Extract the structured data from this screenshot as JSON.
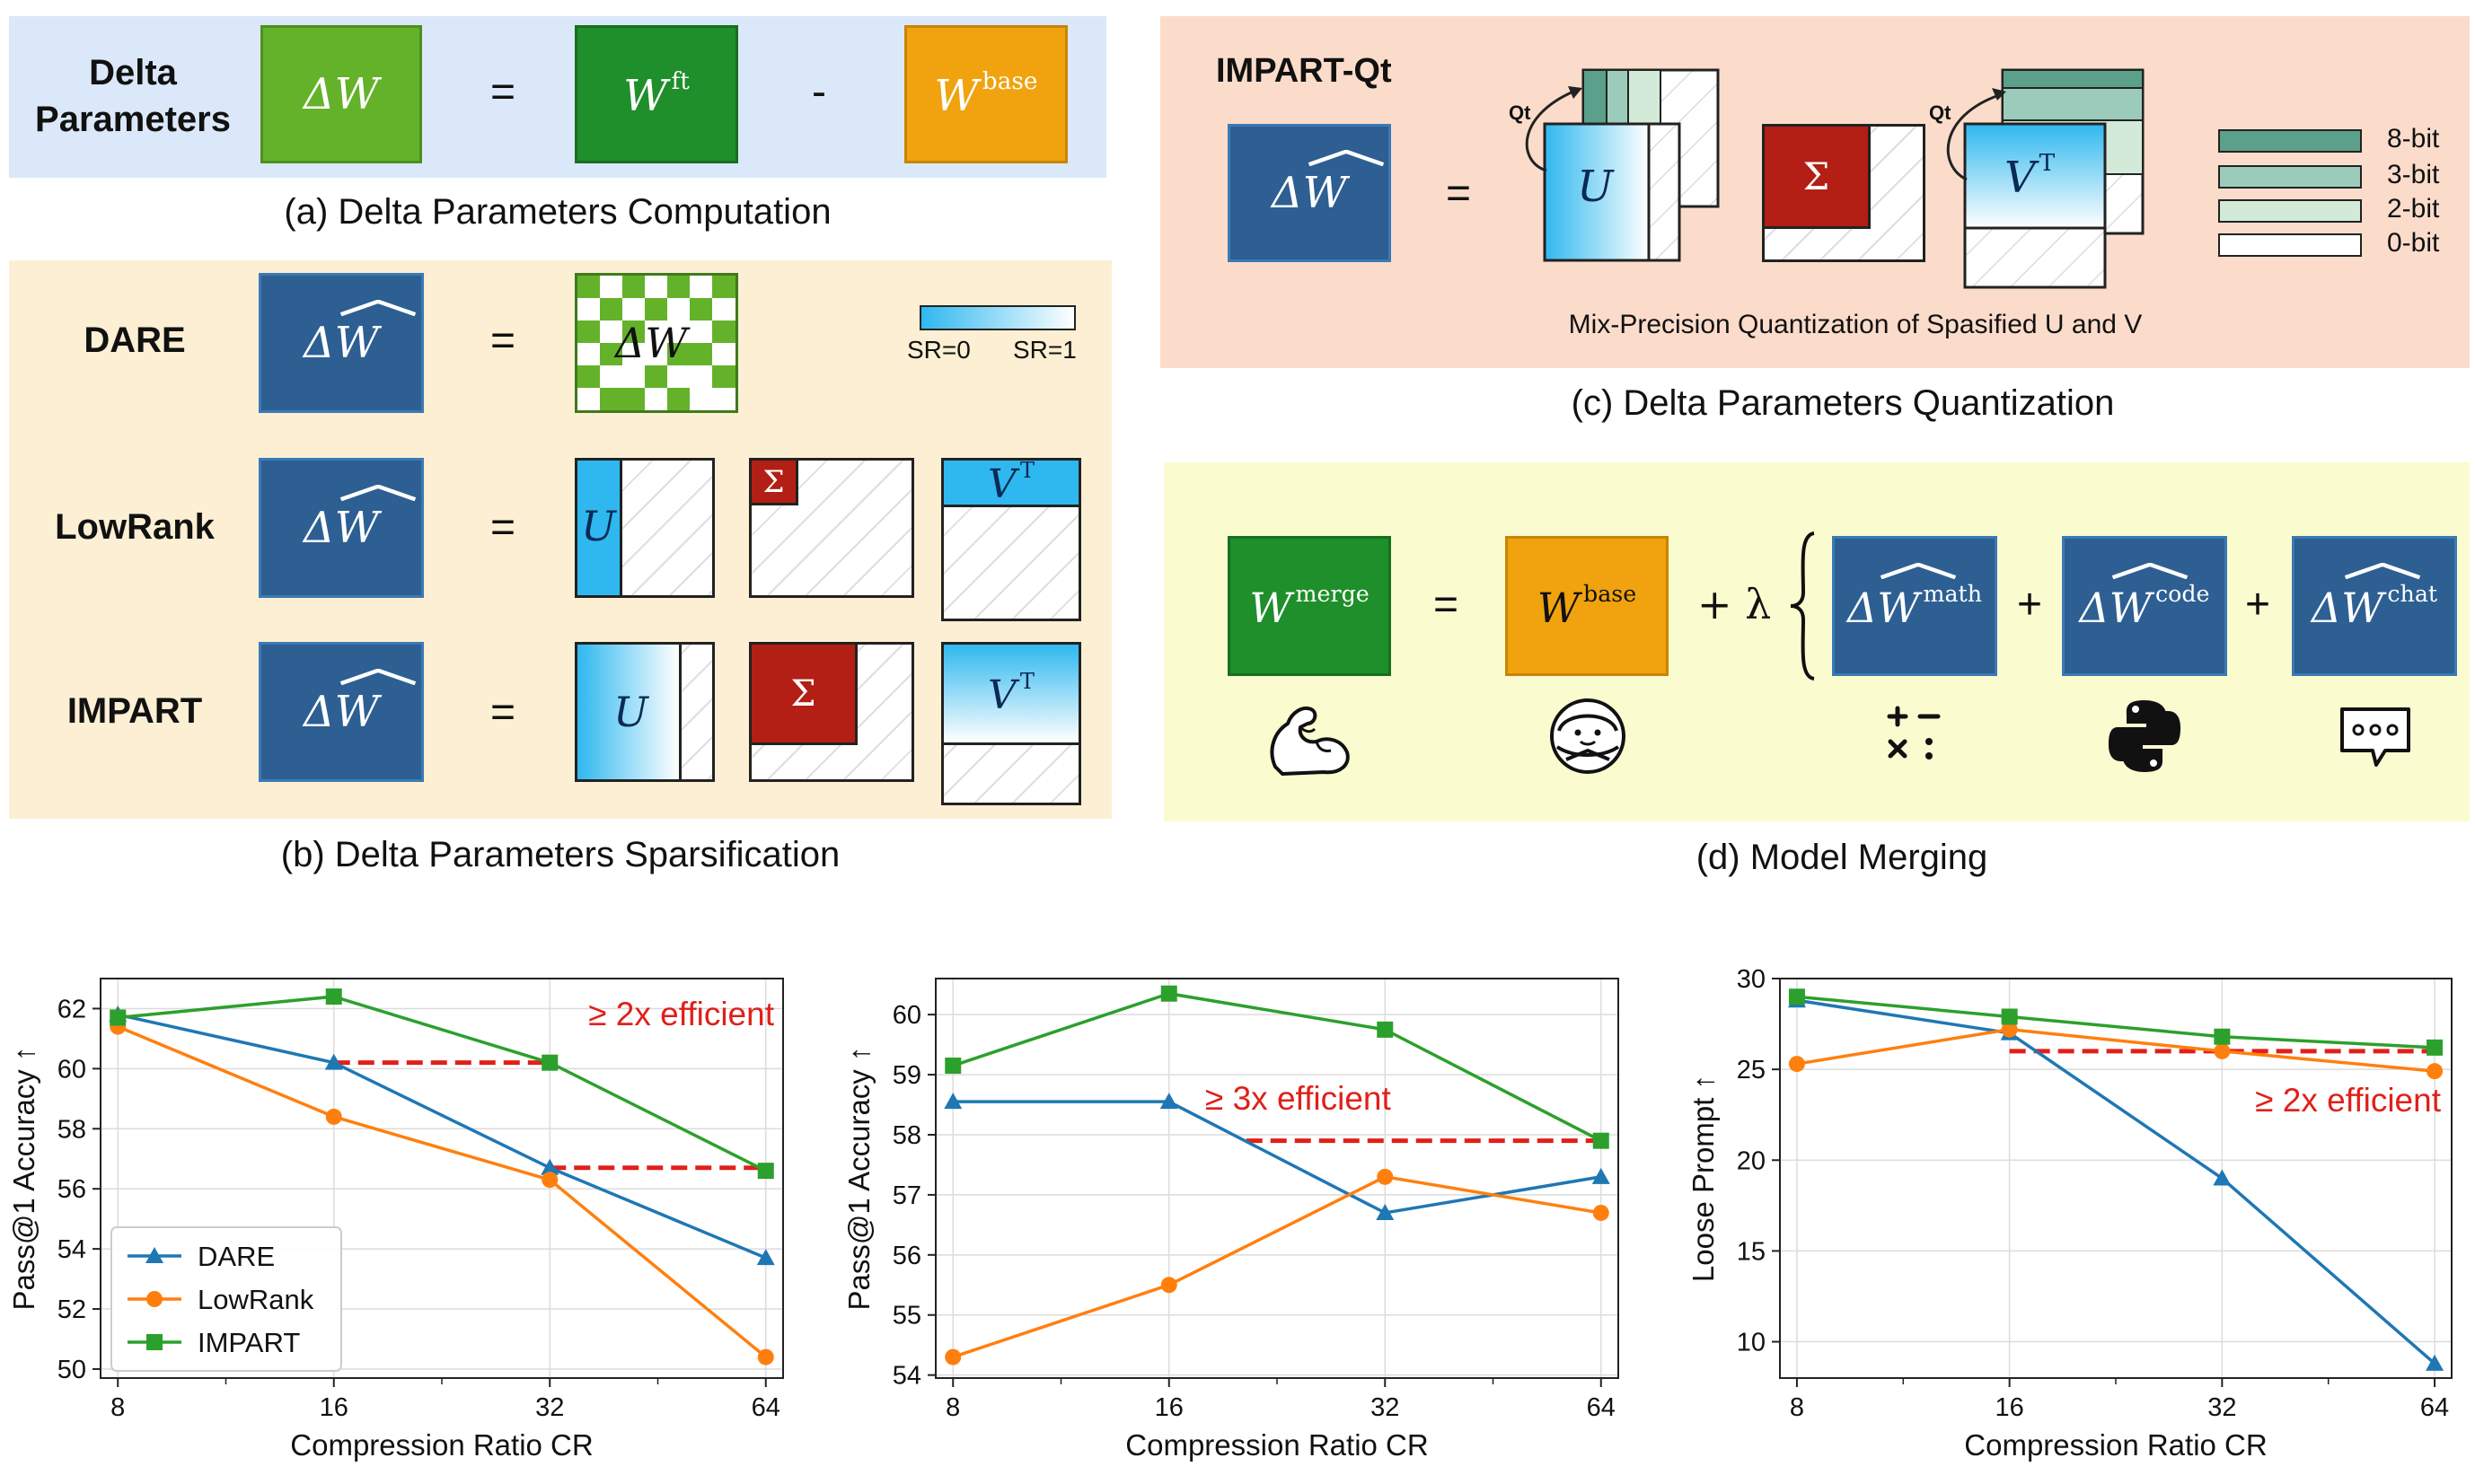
{
  "panel_a": {
    "row_label_line1": "Delta",
    "row_label_line2": "Parameters",
    "eq_sign": "=",
    "minus_sign": "-",
    "delta_W": "ΔW",
    "W": "W",
    "ft_sup": "ft",
    "base_sup": "base",
    "caption": "(a) Delta Parameters Computation",
    "colors": {
      "lime": "#64b22a",
      "green": "#1e8f2a",
      "orange": "#f0a30f",
      "bg": "#dbe8f9"
    }
  },
  "panel_b": {
    "rows": [
      {
        "label": "DARE"
      },
      {
        "label": "LowRank"
      },
      {
        "label": "IMPART"
      }
    ],
    "delta_hat": "ΔW",
    "eq_sign": "=",
    "sr0": "SR=0",
    "sr1": "SR=1",
    "U": "U",
    "Sigma": "Σ",
    "V": "V",
    "T_sup": "T",
    "caption": "(b) Delta Parameters Sparsification",
    "colors": {
      "bg": "#fcefd3",
      "blue": "#2d5f93",
      "cyan": "#2fb8ef",
      "red": "#b31f14"
    }
  },
  "panel_c": {
    "title": "IMPART-Qt",
    "delta_hat": "ΔW",
    "eq_sign": "=",
    "U": "U",
    "Sigma": "Σ",
    "V": "V",
    "T_sup": "T",
    "qt_label": "Qt",
    "legend": [
      "8-bit",
      "3-bit",
      "2-bit",
      "0-bit"
    ],
    "legend_colors": [
      "#5aa08a",
      "#9dcbbb",
      "#d3ead9",
      "#ffffff"
    ],
    "subtitle": "Mix-Precision Quantization of Spasified U and V",
    "caption": "(c) Delta Parameters Quantization",
    "colors": {
      "bg": "#fbdccb"
    }
  },
  "panel_d": {
    "W": "W",
    "merge_sup": "merge",
    "base_sup": "base",
    "eq_sign": "=",
    "plus_lambda": "+ λ",
    "plus": "+",
    "delta_hat": "ΔW",
    "math_sup": "math",
    "code_sup": "code",
    "chat_sup": "chat",
    "icons": [
      "muscle-icon",
      "baby-icon",
      "math-operators-icon",
      "python-icon",
      "chat-bubble-icon"
    ],
    "caption": "(d) Model Merging",
    "colors": {
      "bg": "#fbfbd0"
    }
  },
  "chart_data": [
    {
      "type": "line",
      "categories": [
        "8",
        "16",
        "32",
        "64"
      ],
      "xlabel": "Compression Ratio CR",
      "ylabel": "Pass@1 Accuracy ↑",
      "ylim": [
        49.7,
        63
      ],
      "yticks": [
        50,
        52,
        54,
        56,
        58,
        60,
        62
      ],
      "grid": true,
      "legend": "lower-left",
      "series": [
        {
          "name": "DARE",
          "marker": "triangle",
          "color": "#1f77b4",
          "values": [
            61.8,
            60.2,
            56.7,
            53.7
          ]
        },
        {
          "name": "LowRank",
          "marker": "circle",
          "color": "#ff7f0e",
          "values": [
            61.4,
            58.4,
            56.3,
            50.4
          ]
        },
        {
          "name": "IMPART",
          "marker": "square",
          "color": "#2ca02c",
          "values": [
            61.7,
            62.4,
            60.2,
            56.6
          ]
        }
      ],
      "annotation": "≥ 2x efficient",
      "dashed_lines": [
        {
          "x_from": "16",
          "x_to": "32",
          "y": 60.2
        },
        {
          "x_from": "32",
          "x_to": "64",
          "y": 56.7
        }
      ]
    },
    {
      "type": "line",
      "categories": [
        "8",
        "16",
        "32",
        "64"
      ],
      "xlabel": "Compression Ratio CR",
      "ylabel": "Pass@1 Accuracy ↑",
      "ylim": [
        53.95,
        60.6
      ],
      "yticks": [
        54,
        55,
        56,
        57,
        58,
        59,
        60
      ],
      "grid": true,
      "series": [
        {
          "name": "DARE",
          "marker": "triangle",
          "color": "#1f77b4",
          "values": [
            58.55,
            58.55,
            56.7,
            57.3
          ]
        },
        {
          "name": "LowRank",
          "marker": "circle",
          "color": "#ff7f0e",
          "values": [
            54.3,
            55.5,
            57.3,
            56.7
          ]
        },
        {
          "name": "IMPART",
          "marker": "square",
          "color": "#2ca02c",
          "values": [
            59.15,
            60.35,
            59.75,
            57.9
          ]
        }
      ],
      "annotation": "≥ 3x efficient",
      "dashed_lines": [
        {
          "x_from": 20.5,
          "x_to": "64",
          "y": 57.9
        }
      ]
    },
    {
      "type": "line",
      "categories": [
        "8",
        "16",
        "32",
        "64"
      ],
      "xlabel": "Compression Ratio CR",
      "ylabel": "Loose Prompt ↑",
      "ylim": [
        8,
        30
      ],
      "yticks": [
        10,
        15,
        20,
        25,
        30
      ],
      "grid": true,
      "series": [
        {
          "name": "DARE",
          "marker": "triangle",
          "color": "#1f77b4",
          "values": [
            28.8,
            27.0,
            19.0,
            8.8
          ]
        },
        {
          "name": "LowRank",
          "marker": "circle",
          "color": "#ff7f0e",
          "values": [
            25.3,
            27.2,
            26.0,
            24.9
          ]
        },
        {
          "name": "IMPART",
          "marker": "square",
          "color": "#2ca02c",
          "values": [
            29.0,
            27.9,
            26.8,
            26.2
          ]
        }
      ],
      "annotation": "≥ 2x efficient",
      "dashed_lines": [
        {
          "x_from": "16",
          "x_to": "64",
          "y": 26.0
        }
      ]
    }
  ]
}
